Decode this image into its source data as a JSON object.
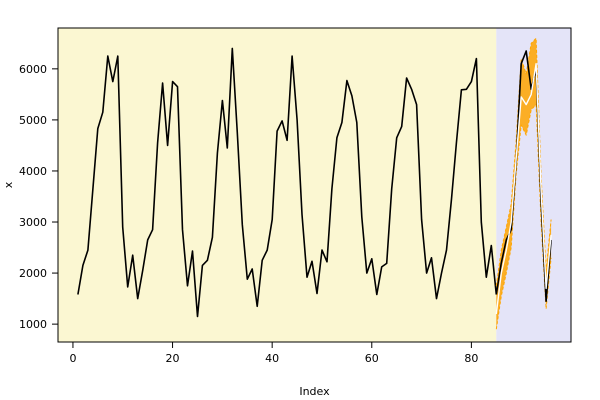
{
  "chart_data": {
    "type": "line",
    "title": "",
    "xlabel": "Index",
    "ylabel": "x",
    "xlim": [
      -3,
      100
    ],
    "ylim": [
      650,
      6800
    ],
    "x_ticks": [
      0,
      20,
      40,
      60,
      80
    ],
    "y_ticks": [
      1000,
      2000,
      3000,
      4000,
      5000,
      6000
    ],
    "grid": false,
    "legend": "none",
    "background_regions": [
      {
        "x_from": -3,
        "x_to": 85,
        "color": "#fbf7d2"
      },
      {
        "x_from": 85,
        "x_to": 100,
        "color": "#e4e4f8"
      }
    ],
    "series": [
      {
        "role": "observed",
        "color": "#000000",
        "x": [
          1,
          2,
          3,
          4,
          5,
          6,
          7,
          8,
          9,
          10,
          11,
          12,
          13,
          14,
          15,
          16,
          17,
          18,
          19,
          20,
          21,
          22,
          23,
          24,
          25,
          26,
          27,
          28,
          29,
          30,
          31,
          32,
          33,
          34,
          35,
          36,
          37,
          38,
          39,
          40,
          41,
          42,
          43,
          44,
          45,
          46,
          47,
          48,
          49,
          50,
          51,
          52,
          53,
          54,
          55,
          56,
          57,
          58,
          59,
          60,
          61,
          62,
          63,
          64,
          65,
          66,
          67,
          68,
          69,
          70,
          71,
          72,
          73,
          74,
          75,
          76,
          77,
          78,
          79,
          80,
          81,
          82,
          83,
          84,
          85
        ],
        "values": [
          1580,
          2150,
          2450,
          3650,
          4830,
          5150,
          6250,
          5750,
          6250,
          2900,
          1730,
          2350,
          1500,
          2050,
          2650,
          2850,
          4550,
          5720,
          4500,
          5750,
          5650,
          2850,
          1750,
          2430,
          1150,
          2150,
          2250,
          2700,
          4350,
          5380,
          4450,
          6400,
          4750,
          2950,
          1880,
          2080,
          1350,
          2250,
          2450,
          3050,
          4780,
          4980,
          4600,
          6250,
          5000,
          3150,
          1920,
          2230,
          1600,
          2450,
          2220,
          3650,
          4650,
          4950,
          5770,
          5470,
          4950,
          3100,
          2000,
          2280,
          1580,
          2120,
          2190,
          3650,
          4650,
          4870,
          5820,
          5600,
          5300,
          3050,
          2000,
          2300,
          1500,
          2000,
          2450,
          3450,
          4550,
          5590,
          5600,
          5750,
          6200,
          3000,
          1920,
          2540,
          1580
        ]
      },
      {
        "role": "forecast",
        "color": "#000000",
        "x": [
          85,
          86,
          87,
          88,
          89,
          90,
          91,
          92,
          93,
          94,
          95,
          96
        ],
        "values": [
          1580,
          2200,
          2650,
          2850,
          4200,
          6100,
          6350,
          5600,
          6000,
          3400,
          1450,
          2650
        ]
      },
      {
        "role": "forecast-inner",
        "color": "#ffffff",
        "x": [
          85,
          86,
          87,
          88,
          89,
          90,
          91,
          92,
          93,
          94,
          95,
          96
        ],
        "values": [
          1200,
          2000,
          2450,
          3000,
          4250,
          5450,
          5300,
          5500,
          6100,
          3600,
          1700,
          2750
        ]
      },
      {
        "role": "upper-band",
        "color": "#ffa500",
        "x": [
          85,
          86,
          87,
          88,
          89,
          90,
          91,
          92,
          93,
          94,
          95,
          96
        ],
        "values": [
          1750,
          2450,
          2900,
          3350,
          4600,
          6200,
          5900,
          6500,
          6600,
          3900,
          2050,
          3050
        ]
      },
      {
        "role": "lower-band",
        "color": "#ffa500",
        "x": [
          85,
          86,
          87,
          88,
          89,
          90,
          91,
          92,
          93,
          94,
          95,
          96
        ],
        "values": [
          900,
          1550,
          2000,
          2500,
          3950,
          4900,
          4700,
          5200,
          5300,
          3000,
          1300,
          2300
        ]
      }
    ]
  }
}
